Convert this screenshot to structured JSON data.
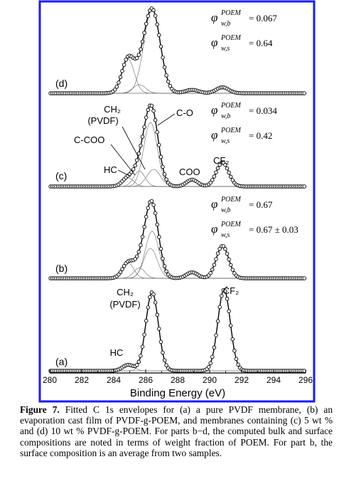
{
  "chart_data": {
    "type": "line",
    "xlabel": "Binding Energy (eV)",
    "xlim": [
      280,
      296
    ],
    "xticks": [
      "280",
      "282",
      "284",
      "286",
      "288",
      "290",
      "292",
      "294",
      "296"
    ],
    "x_reversed": false,
    "grid": false,
    "panels": [
      {
        "label": "(d)",
        "peaks": [
          {
            "center": 284.9,
            "height": 0.4,
            "width": 0.55
          },
          {
            "center": 285.6,
            "height": 0.1,
            "width": 0.55
          },
          {
            "center": 286.4,
            "height": 0.98,
            "width": 0.72
          },
          {
            "center": 288.9,
            "height": 0.04,
            "width": 0.6
          },
          {
            "center": 290.8,
            "height": 0.07,
            "width": 0.55
          }
        ],
        "annotations": [
          {
            "symbol": "φ",
            "sup": "POEM",
            "sub": "w,b",
            "value": "= 0.067"
          },
          {
            "symbol": "φ",
            "sup": "POEM",
            "sub": "w,s",
            "value": "= 0.64"
          }
        ],
        "peak_labels": []
      },
      {
        "label": "(c)",
        "peaks": [
          {
            "center": 284.9,
            "height": 0.1,
            "width": 0.5
          },
          {
            "center": 285.6,
            "height": 0.18,
            "width": 0.5
          },
          {
            "center": 286.3,
            "height": 0.75,
            "width": 0.6
          },
          {
            "center": 286.5,
            "height": 0.2,
            "width": 0.6
          },
          {
            "center": 288.9,
            "height": 0.08,
            "width": 0.5
          },
          {
            "center": 290.8,
            "height": 0.28,
            "width": 0.55
          }
        ],
        "annotations": [
          {
            "symbol": "φ",
            "sup": "POEM",
            "sub": "w,b",
            "value": "= 0.034"
          },
          {
            "symbol": "φ",
            "sup": "POEM",
            "sub": "w,s",
            "value": "= 0.42"
          }
        ],
        "peak_labels": [
          {
            "text": "CH₂",
            "sub": ""
          },
          {
            "text": "(PVDF)",
            "sub": ""
          },
          {
            "text": "C-O",
            "sub": ""
          },
          {
            "text": "C-COO",
            "sub": ""
          },
          {
            "text": "HC",
            "sub": ""
          },
          {
            "text": "COO",
            "sub": ""
          },
          {
            "text": "CF₂",
            "sub": ""
          }
        ]
      },
      {
        "label": "(b)",
        "peaks": [
          {
            "center": 284.9,
            "height": 0.18,
            "width": 0.5
          },
          {
            "center": 285.6,
            "height": 0.12,
            "width": 0.5
          },
          {
            "center": 286.4,
            "height": 0.55,
            "width": 0.6
          },
          {
            "center": 286.3,
            "height": 0.35,
            "width": 0.6
          },
          {
            "center": 288.9,
            "height": 0.07,
            "width": 0.5
          },
          {
            "center": 290.8,
            "height": 0.38,
            "width": 0.55
          }
        ],
        "annotations": [
          {
            "symbol": "φ",
            "sup": "POEM",
            "sub": "w,b",
            "value": "= 0.67"
          },
          {
            "symbol": "φ",
            "sup": "POEM",
            "sub": "w,s",
            "value": "= 0.67 ± 0.03"
          }
        ],
        "peak_labels": []
      },
      {
        "label": "(a)",
        "peaks": [
          {
            "center": 284.9,
            "height": 0.07,
            "width": 0.5
          },
          {
            "center": 286.4,
            "height": 0.92,
            "width": 0.55
          },
          {
            "center": 290.9,
            "height": 0.95,
            "width": 0.55
          }
        ],
        "annotations": [],
        "peak_labels": [
          {
            "text": "CH₂",
            "sub": ""
          },
          {
            "text": "(PVDF)",
            "sub": ""
          },
          {
            "text": "CF₂",
            "sub": ""
          },
          {
            "text": "HC",
            "sub": ""
          }
        ]
      }
    ]
  },
  "caption": {
    "label": "Figure 7.",
    "text": " Fitted C 1s envelopes for (a) a pure PVDF membrane, (b) an evaporation cast film of PVDF-g-POEM, and membranes containing (c) 5 wt % and (d) 10 wt % PVDF-g-POEM. For parts b−d, the computed bulk and surface compositions are noted in terms of weight fraction of POEM. For part b, the surface composition is an average from two samples."
  },
  "colors": {
    "frame": "#1a1aff",
    "axis": "#000000",
    "curve": "#000000",
    "fit": "#666666"
  }
}
